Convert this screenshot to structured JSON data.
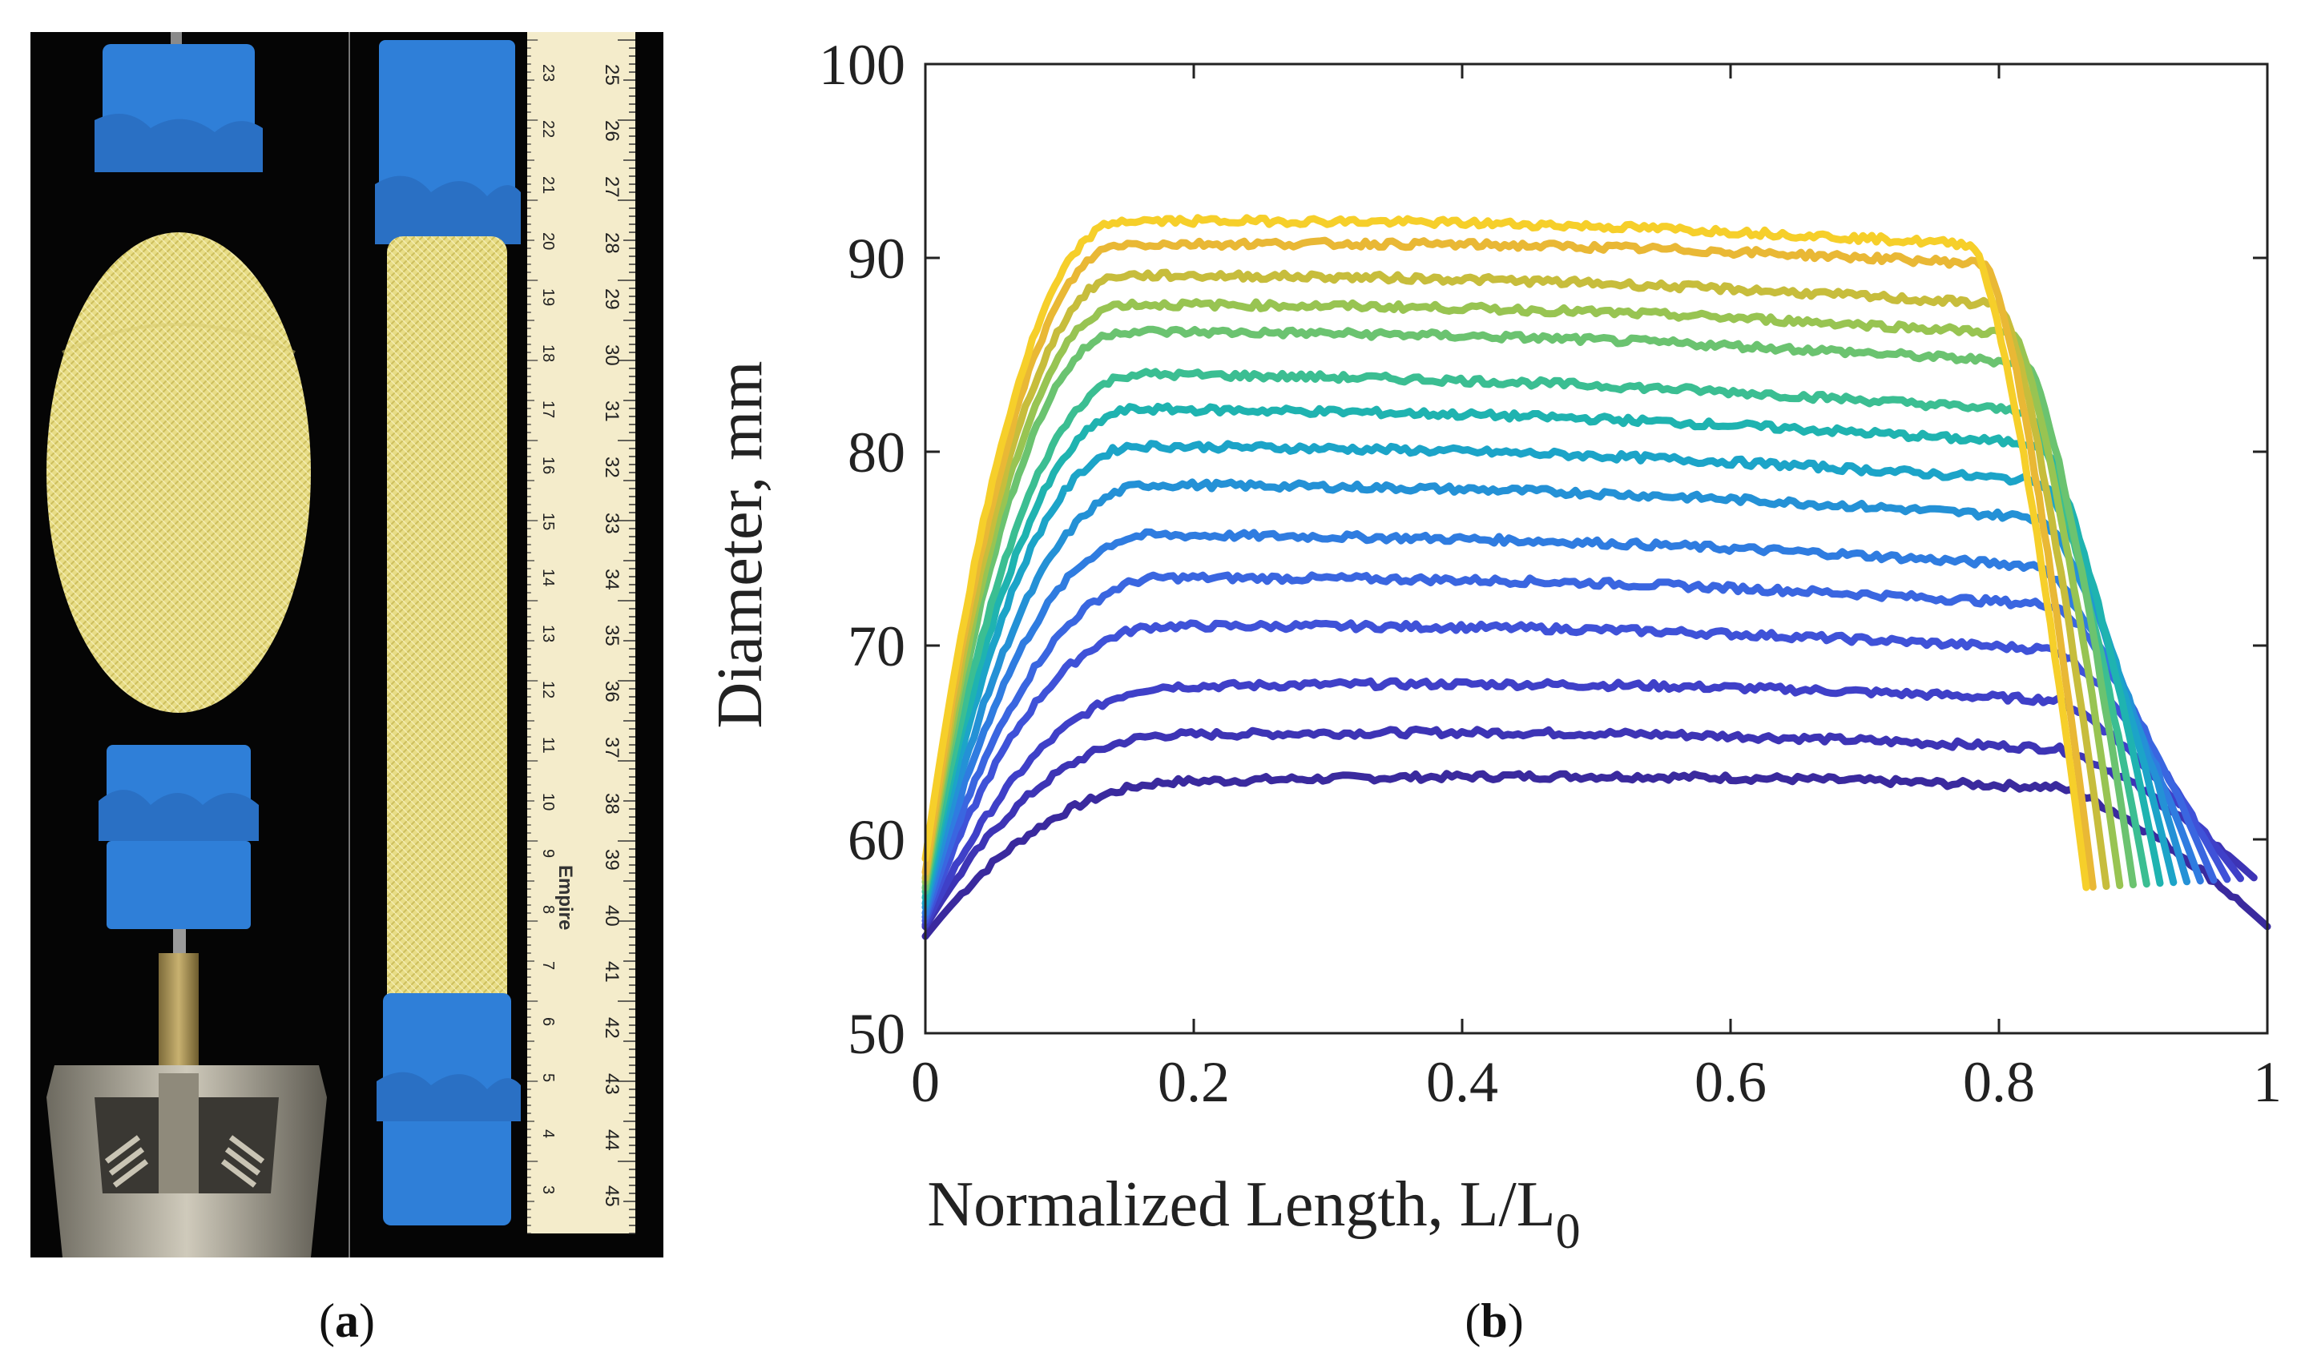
{
  "figure": {
    "caption_a": "a",
    "caption_b": "b"
  },
  "ruler": {
    "numbers_right": [
      "25",
      "26",
      "27",
      "28",
      "29",
      "30",
      "31",
      "32",
      "33",
      "34",
      "35",
      "36",
      "37",
      "38",
      "39",
      "40",
      "41",
      "42",
      "43",
      "44",
      "45"
    ],
    "numbers_left": [
      "23",
      "22",
      "21",
      "20",
      "19",
      "18",
      "17",
      "16",
      "15",
      "14",
      "13",
      "12",
      "11",
      "10",
      "9",
      "8",
      "7",
      "6",
      "5",
      "4",
      "3"
    ],
    "brand": "Empire"
  },
  "colors": {
    "tape": "#2f7fd8",
    "sleeve": "#e8dd86",
    "ruler": "#f4eccb",
    "background": "#000000"
  },
  "chart_data": {
    "type": "line",
    "xlabel_main": "Normalized Length, L/L",
    "xlabel_sub": "0",
    "ylabel": "Diameter, mm",
    "xlim": [
      0,
      1
    ],
    "ylim": [
      50,
      100
    ],
    "xticks": [
      "0",
      "0.2",
      "0.4",
      "0.6",
      "0.8",
      "1"
    ],
    "yticks": [
      "50",
      "60",
      "70",
      "80",
      "90",
      "100"
    ],
    "series": [
      {
        "color": "#3a2a9e",
        "plateau": 63.0,
        "end_x": 1.0,
        "start_y": 55.0,
        "rise_x": 0.2,
        "fall_x": 0.84,
        "slope": -0.3
      },
      {
        "color": "#3d34b5",
        "plateau": 65.4,
        "end_x": 0.99,
        "start_y": 55.5,
        "rise_x": 0.19,
        "fall_x": 0.84,
        "slope": -0.7
      },
      {
        "color": "#3f40c8",
        "plateau": 67.9,
        "end_x": 0.98,
        "start_y": 55.6,
        "rise_x": 0.19,
        "fall_x": 0.84,
        "slope": -0.7
      },
      {
        "color": "#3f52d8",
        "plateau": 71.0,
        "end_x": 0.97,
        "start_y": 55.8,
        "rise_x": 0.18,
        "fall_x": 0.84,
        "slope": -1.2
      },
      {
        "color": "#3a66e0",
        "plateau": 73.5,
        "end_x": 0.96,
        "start_y": 56.0,
        "rise_x": 0.18,
        "fall_x": 0.84,
        "slope": -1.4
      },
      {
        "color": "#2f7ce0",
        "plateau": 75.7,
        "end_x": 0.95,
        "start_y": 56.2,
        "rise_x": 0.17,
        "fall_x": 0.83,
        "slope": -1.6
      },
      {
        "color": "#2491d6",
        "plateau": 78.3,
        "end_x": 0.94,
        "start_y": 56.5,
        "rise_x": 0.17,
        "fall_x": 0.83,
        "slope": -1.7
      },
      {
        "color": "#1ca4c8",
        "plateau": 80.3,
        "end_x": 0.93,
        "start_y": 56.7,
        "rise_x": 0.16,
        "fall_x": 0.83,
        "slope": -1.8
      },
      {
        "color": "#1fb3b0",
        "plateau": 82.2,
        "end_x": 0.92,
        "start_y": 57.0,
        "rise_x": 0.16,
        "fall_x": 0.83,
        "slope": -1.8
      },
      {
        "color": "#3bbe92",
        "plateau": 84.0,
        "end_x": 0.91,
        "start_y": 57.3,
        "rise_x": 0.16,
        "fall_x": 0.82,
        "slope": -1.9
      },
      {
        "color": "#6bc370",
        "plateau": 86.2,
        "end_x": 0.9,
        "start_y": 57.5,
        "rise_x": 0.15,
        "fall_x": 0.82,
        "slope": -1.6
      },
      {
        "color": "#98c452",
        "plateau": 87.6,
        "end_x": 0.89,
        "start_y": 57.8,
        "rise_x": 0.15,
        "fall_x": 0.81,
        "slope": -1.5
      },
      {
        "color": "#c7bd3c",
        "plateau": 89.1,
        "end_x": 0.88,
        "start_y": 58.0,
        "rise_x": 0.15,
        "fall_x": 0.8,
        "slope": -1.5
      },
      {
        "color": "#e9b835",
        "plateau": 90.7,
        "end_x": 0.87,
        "start_y": 58.3,
        "rise_x": 0.15,
        "fall_x": 0.79,
        "slope": -1.0
      },
      {
        "color": "#f6cf2a",
        "plateau": 91.9,
        "end_x": 0.865,
        "start_y": 59.0,
        "rise_x": 0.15,
        "fall_x": 0.78,
        "slope": -1.2
      }
    ]
  }
}
